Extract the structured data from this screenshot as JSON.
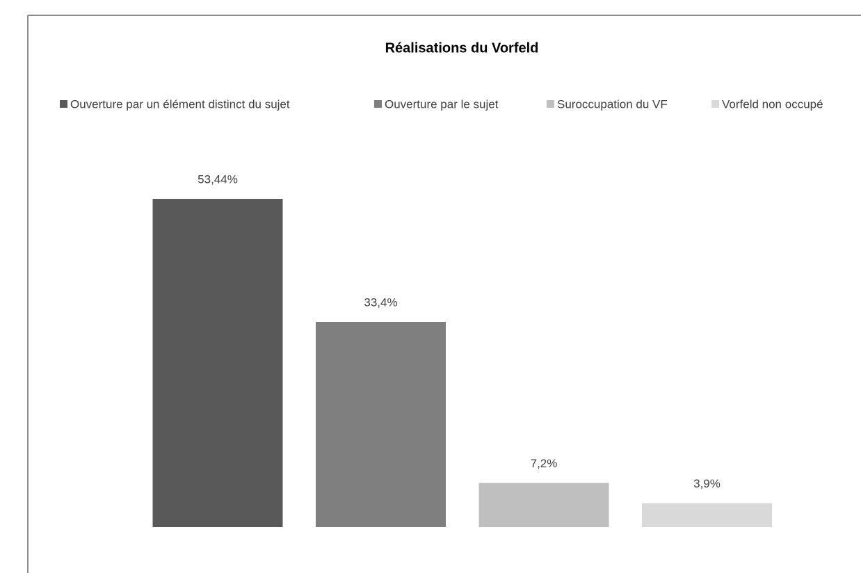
{
  "chart_data": {
    "type": "bar",
    "title": "Réalisations du Vorfeld",
    "categories": [
      null
    ],
    "series": [
      {
        "name": "Ouverture par un élément distinct du sujet",
        "color": "#595959",
        "values": [
          53.44
        ],
        "value_labels": [
          "53,44%"
        ]
      },
      {
        "name": "Ouverture par le sujet",
        "color": "#7f7f7f",
        "values": [
          33.4
        ],
        "value_labels": [
          "33,4%"
        ]
      },
      {
        "name": "Suroccupation du VF",
        "color": "#bfbfbf",
        "values": [
          7.2
        ],
        "value_labels": [
          "7,2%"
        ]
      },
      {
        "name": "Vorfeld non occupé",
        "color": "#d9d9d9",
        "values": [
          3.9
        ],
        "value_labels": [
          "3,9%"
        ]
      }
    ],
    "legend": "top"
  }
}
